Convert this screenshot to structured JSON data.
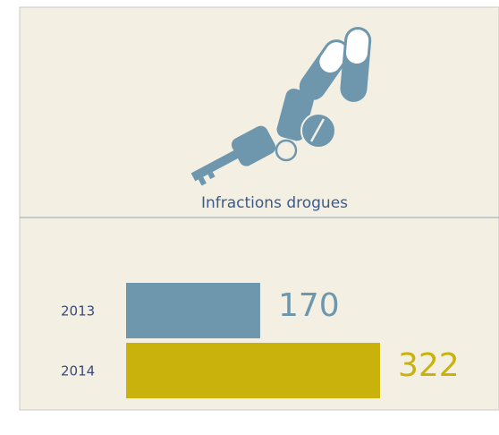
{
  "chart_data": {
    "type": "bar",
    "title": "Infractions drogues",
    "categories": [
      "2013",
      "2014"
    ],
    "values": [
      170,
      322
    ],
    "colors": [
      "#6e97ad",
      "#c9b20b"
    ]
  }
}
